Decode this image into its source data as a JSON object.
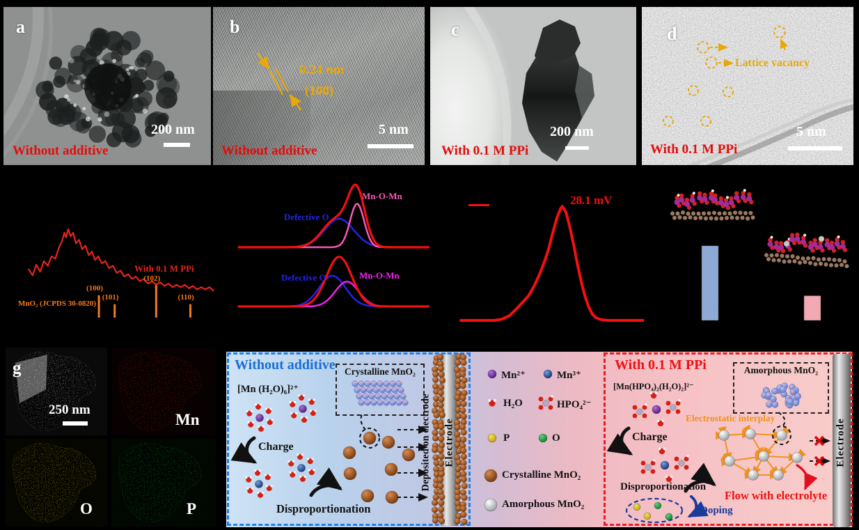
{
  "panels": {
    "a": {
      "letter": "a",
      "label": "Without additive",
      "scale_text": "200 nm"
    },
    "b": {
      "letter": "b",
      "label": "Without additive",
      "scale_text": "5 nm",
      "d_spacing": "0.24 nm",
      "plane": "(100)"
    },
    "c": {
      "letter": "c",
      "label": "With 0.1 M PPi",
      "scale_text": "200 nm"
    },
    "d": {
      "letter": "d",
      "label": "With 0.1 M PPi",
      "scale_text": "5 nm",
      "vacancy_label": "Lattice vacancy"
    },
    "g": {
      "letter": "g",
      "scale_text": "250 nm",
      "map_labels": {
        "mn": "Mn",
        "o": "O",
        "p": "P"
      }
    }
  },
  "chart_data": [
    {
      "id": "xrd",
      "type": "line",
      "x_range": [
        11.5,
        77
      ],
      "series": [
        {
          "name": "With 0.1 M PPi",
          "color": "#e8251c",
          "points": [
            [
              13,
              0.36
            ],
            [
              14.3,
              0.31
            ],
            [
              15.6,
              0.4
            ],
            [
              16.9,
              0.34
            ],
            [
              18.2,
              0.43
            ],
            [
              19.5,
              0.39
            ],
            [
              20.8,
              0.47
            ],
            [
              22.1,
              0.45
            ],
            [
              23.4,
              0.55
            ],
            [
              24.4,
              0.6
            ],
            [
              25.2,
              0.67
            ],
            [
              25.8,
              0.63
            ],
            [
              26.5,
              0.7
            ],
            [
              27.3,
              0.64
            ],
            [
              28.2,
              0.67
            ],
            [
              29.1,
              0.58
            ],
            [
              30.2,
              0.61
            ],
            [
              31.3,
              0.53
            ],
            [
              32.4,
              0.56
            ],
            [
              33.5,
              0.48
            ],
            [
              34.6,
              0.51
            ],
            [
              35.7,
              0.44
            ],
            [
              36.8,
              0.47
            ],
            [
              38,
              0.41
            ],
            [
              39.2,
              0.43
            ],
            [
              40.5,
              0.37
            ],
            [
              41.8,
              0.39
            ],
            [
              43.1,
              0.33
            ],
            [
              44.4,
              0.35
            ],
            [
              45.7,
              0.3
            ],
            [
              47,
              0.32
            ],
            [
              48.3,
              0.28
            ],
            [
              49.6,
              0.3
            ],
            [
              51,
              0.26
            ],
            [
              52.4,
              0.28
            ],
            [
              53.8,
              0.24
            ],
            [
              55.2,
              0.26
            ],
            [
              56.6,
              0.23
            ],
            [
              58,
              0.25
            ],
            [
              59.4,
              0.22
            ],
            [
              60.8,
              0.24
            ],
            [
              62.2,
              0.21
            ],
            [
              63.6,
              0.23
            ],
            [
              65,
              0.21
            ],
            [
              66.4,
              0.23
            ],
            [
              67.8,
              0.2
            ],
            [
              69.2,
              0.22
            ],
            [
              70.6,
              0.19
            ],
            [
              72,
              0.21
            ],
            [
              73.4,
              0.19
            ],
            [
              74.8,
              0.21
            ],
            [
              76.2,
              0.18
            ]
          ]
        }
      ],
      "reference": {
        "label": "MnO₂ (JCPDS 30-0820)",
        "color": "#f57a1a",
        "peaks": [
          {
            "two_theta": 37.0,
            "hkl": "(100)",
            "rel_h": 1.0
          },
          {
            "two_theta": 42.4,
            "hkl": "(101)",
            "rel_h": 0.6
          },
          {
            "two_theta": 56.6,
            "hkl": "(102)",
            "rel_h": 1.45
          },
          {
            "two_theta": 68.3,
            "hkl": "(110)",
            "rel_h": 0.6
          }
        ]
      }
    },
    {
      "id": "xps_o1s",
      "type": "line",
      "subplots": [
        {
          "curves": [
            {
              "name": "Defective O",
              "color": "#2323ee",
              "width": 2.5,
              "gaussians": [
                [
                  51.5,
                  7.5,
                  0.43
                ]
              ]
            },
            {
              "name": "Mn-O-Mn",
              "color": "#f75ab8",
              "width": 2.5,
              "gaussians": [
                [
                  60.7,
                  3.6,
                  0.66
                ]
              ]
            },
            {
              "name": "envelope",
              "color": "#f5100c",
              "width": 3.2,
              "gaussians": [
                [
                  60.5,
                  4.3,
                  0.8
                ],
                [
                  50,
                  7,
                  0.42
                ]
              ]
            }
          ],
          "label_defective": "Defective O",
          "label_mnomn": "Mn-O-Mn"
        },
        {
          "curves": [
            {
              "name": "Defective O",
              "color": "#2323ee",
              "width": 2.5,
              "gaussians": [
                [
                  48,
                  6.8,
                  0.52
                ]
              ]
            },
            {
              "name": "Mn-O-Mn",
              "color": "#ee22ee",
              "width": 2.5,
              "gaussians": [
                [
                  55.5,
                  6,
                  0.42
                ]
              ]
            },
            {
              "name": "envelope",
              "color": "#f5100c",
              "width": 3.2,
              "gaussians": [
                [
                  51.5,
                  6.5,
                  0.84
                ]
              ]
            }
          ],
          "label_defective": "Defective O",
          "label_mnomn": "Mn-O-Mn"
        }
      ]
    },
    {
      "id": "zeta",
      "type": "line",
      "annotation": {
        "text": "28.1 mV",
        "color": "#f50f0f"
      },
      "series": [
        {
          "name": "zeta potential distribution",
          "color": "#f50f0f",
          "width": 4,
          "points": [
            [
              0,
              0
            ],
            [
              18,
              0
            ],
            [
              22,
              0.01
            ],
            [
              26,
              0.04
            ],
            [
              30,
              0.1
            ],
            [
              33,
              0.15
            ],
            [
              36,
              0.2
            ],
            [
              39,
              0.28
            ],
            [
              42,
              0.38
            ],
            [
              45,
              0.5
            ],
            [
              47,
              0.6
            ],
            [
              49,
              0.72
            ],
            [
              51,
              0.83
            ],
            [
              53,
              0.91
            ],
            [
              54,
              0.93
            ],
            [
              56,
              0.88
            ],
            [
              58,
              0.76
            ],
            [
              60,
              0.62
            ],
            [
              62,
              0.46
            ],
            [
              64,
              0.32
            ],
            [
              66,
              0.2
            ],
            [
              68,
              0.11
            ],
            [
              70,
              0.05
            ],
            [
              72,
              0.02
            ],
            [
              75,
              0.005
            ],
            [
              78,
              0
            ],
            [
              100,
              0
            ]
          ]
        }
      ]
    },
    {
      "id": "adsorption_bars",
      "type": "bar",
      "categories": [
        "",
        ""
      ],
      "values_norm": [
        1.0,
        0.33
      ],
      "bar_colors": [
        "#8fa9d6",
        "#f2a9b4"
      ]
    }
  ],
  "schematic": {
    "left": {
      "title": "Without additive",
      "precursor": "[Mn (H₂O)₆]²⁺",
      "charge": "Charge",
      "dispro": "Disproportionation",
      "box_label": "Crystalline MnO₂",
      "deposit": "Deposited on electrode",
      "electrode": "Electrode"
    },
    "legend": {
      "items": [
        {
          "label": "Mn²⁺",
          "color": "#7a2fa8"
        },
        {
          "label": "Mn³⁺",
          "color": "#2857a8"
        },
        {
          "label": "H₂O",
          "color": "#e03020"
        },
        {
          "label": "HPO₄²⁻",
          "color": "#b8a8c8"
        },
        {
          "label": "P",
          "color": "#e8cc10"
        },
        {
          "label": "O",
          "color": "#18a838"
        },
        {
          "label": "Crystalline MnO₂",
          "color": "#9a4a1a"
        },
        {
          "label": "Amorphous MnO₂",
          "color": "#cfcfcf"
        }
      ]
    },
    "right": {
      "title": "With 0.1 M PPi",
      "precursor": "[Mn(HPO₄)₂(H₂O)₂]²⁻",
      "charge": "Charge",
      "dispro": "Disproportionation",
      "doping": "Doping",
      "electro": "Electrostatic interplay",
      "flow": "Flow with electrolyte",
      "box_label": "Amorphous MnO₂",
      "electrode": "Electrode"
    }
  }
}
